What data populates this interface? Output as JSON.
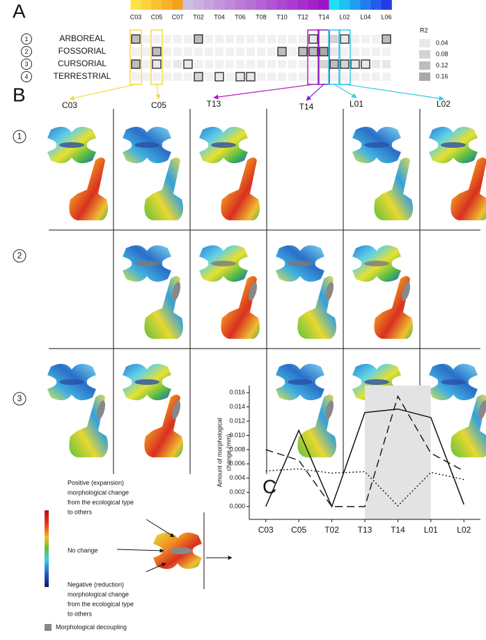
{
  "panel_labels": [
    "A",
    "B",
    "C"
  ],
  "panel_a": {
    "vertebra_labels": [
      "C03",
      "C05",
      "C07",
      "T02",
      "T04",
      "T06",
      "T08",
      "T10",
      "T12",
      "T14",
      "L02",
      "L04",
      "L06"
    ],
    "rows": [
      {
        "number": "1",
        "label": "ARBOREAL",
        "r2": [
          0.12,
          null,
          null,
          null,
          null,
          null,
          0.12,
          null,
          null,
          null,
          null,
          null,
          null,
          null,
          null,
          null,
          null,
          0.04,
          null,
          0.08,
          0.04,
          null,
          null,
          null,
          0.12
        ],
        "outlined": [
          true,
          false,
          false,
          false,
          false,
          false,
          true,
          false,
          false,
          false,
          false,
          false,
          false,
          false,
          false,
          false,
          false,
          true,
          false,
          false,
          true,
          false,
          false,
          false,
          true
        ]
      },
      {
        "number": "2",
        "label": "FOSSORIAL",
        "r2": [
          null,
          null,
          0.12,
          null,
          null,
          null,
          null,
          null,
          null,
          null,
          null,
          null,
          null,
          null,
          0.12,
          null,
          0.12,
          0.12,
          0.16,
          0.04,
          null,
          null,
          null,
          null,
          null
        ],
        "outlined": [
          false,
          false,
          true,
          false,
          false,
          false,
          false,
          false,
          false,
          false,
          false,
          false,
          false,
          false,
          true,
          false,
          true,
          true,
          true,
          false,
          false,
          false,
          false,
          false,
          false
        ]
      },
      {
        "number": "3",
        "label": "CURSORIAL",
        "r2": [
          0.12,
          null,
          0.04,
          null,
          0.04,
          0.04,
          null,
          null,
          null,
          null,
          null,
          null,
          null,
          null,
          null,
          null,
          null,
          null,
          0.08,
          0.12,
          0.08,
          0.04,
          0.04,
          0.04,
          0.04
        ],
        "outlined": [
          true,
          false,
          true,
          false,
          false,
          true,
          false,
          false,
          false,
          false,
          false,
          false,
          false,
          false,
          false,
          false,
          false,
          false,
          false,
          true,
          true,
          true,
          true,
          false,
          false
        ]
      },
      {
        "number": "4",
        "label": "TERRESTRIAL",
        "r2": [
          null,
          null,
          null,
          null,
          null,
          null,
          0.08,
          null,
          0.04,
          null,
          0.04,
          0.04,
          null,
          null,
          null,
          null,
          null,
          null,
          null,
          null,
          null,
          null,
          null,
          null,
          null
        ],
        "outlined": [
          false,
          false,
          false,
          false,
          false,
          false,
          true,
          false,
          true,
          false,
          true,
          true,
          false,
          false,
          false,
          false,
          false,
          false,
          false,
          false,
          false,
          false,
          false,
          false,
          false
        ]
      }
    ],
    "r2_legend": {
      "title": "R2",
      "values": [
        0.04,
        0.08,
        0.12,
        0.16
      ]
    }
  },
  "panel_b": {
    "columns": [
      "C03",
      "C05",
      "T13",
      "T14",
      "L01",
      "L02"
    ],
    "rows": [
      {
        "number": "1",
        "filled": [
          true,
          true,
          true,
          false,
          true,
          true
        ]
      },
      {
        "number": "2",
        "filled": [
          false,
          true,
          true,
          true,
          true,
          false
        ]
      },
      {
        "number": "3",
        "filled": [
          true,
          true,
          false,
          true,
          true,
          true
        ]
      }
    ]
  },
  "legend": {
    "positive": [
      "Positive (expansion)",
      "morphological change",
      "from the ecological type",
      "to others"
    ],
    "no_change": "No change",
    "negative": [
      "Negative (reduction)",
      "morphological change",
      "from the ecological type",
      "to others"
    ],
    "decoupling": "Morphological decoupling"
  },
  "chart_data": {
    "type": "line",
    "ylabel": [
      "Amount of morphological",
      "change (mm)"
    ],
    "categories": [
      "C03",
      "C05",
      "T02",
      "T13",
      "T14",
      "L01",
      "L02"
    ],
    "highlight": [
      "T13",
      "L01"
    ],
    "series": [
      {
        "style": "solid",
        "color": "#111111",
        "values": [
          0,
          0.0107,
          0,
          0.0132,
          0.0137,
          0.0125,
          0.0003
        ]
      },
      {
        "style": "dashed",
        "color": "#111111",
        "values": [
          0.008,
          0.0065,
          0,
          0,
          0.0155,
          0.0075,
          0.005
        ]
      },
      {
        "style": "dotted",
        "color": "#111111",
        "values": [
          0.005,
          0.0053,
          0.0047,
          0.0049,
          0.0001,
          0.0048,
          0.0038
        ]
      }
    ],
    "ylim": [
      -0.0018,
      0.017
    ],
    "yticks": [
      {
        "value": 0,
        "label": "0.000"
      },
      {
        "value": 0.002,
        "label": "0.002"
      },
      {
        "value": 0.004,
        "label": "0.004"
      },
      {
        "value": 0.006,
        "label": "0.006"
      },
      {
        "value": 0.008,
        "label": "0.008"
      },
      {
        "value": 0.01,
        "label": "0.010"
      },
      {
        "value": 0.012,
        "label": "0.012"
      },
      {
        "value": 0.014,
        "label": "0.014"
      },
      {
        "value": 0.016,
        "label": "0.016"
      }
    ]
  }
}
